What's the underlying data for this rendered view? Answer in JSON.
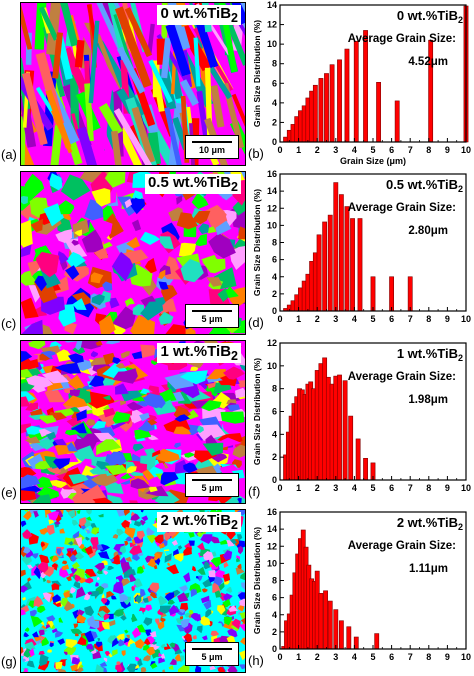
{
  "colors": {
    "bar": "#ff0000",
    "bar_edge": "#800000",
    "axis": "#000000"
  },
  "panels": [
    {
      "label": "(a)",
      "composition": "0 wt.%TiB",
      "subscript": "2",
      "scale": "10 μm"
    },
    {
      "label": "(c)",
      "composition": "0.5 wt.%TiB",
      "subscript": "2",
      "scale": "5 μm"
    },
    {
      "label": "(e)",
      "composition": "1 wt.%TiB",
      "subscript": "2",
      "scale": "5 μm"
    },
    {
      "label": "(g)",
      "composition": "2 wt.%TiB",
      "subscript": "2",
      "scale": "5 μm"
    }
  ],
  "chart_data": [
    {
      "type": "bar",
      "panel_label": "(b)",
      "title": "0 wt.%TiB",
      "title_sub": "2",
      "annotation_title": "Average Grain Size:",
      "annotation_value": "4.52μm",
      "xlabel": "Grain Size (μm)",
      "ylabel": "Grain Size Distribution (%)",
      "xlim": [
        0,
        10
      ],
      "ylim": [
        0,
        14
      ],
      "xticks": [
        0,
        1,
        2,
        3,
        4,
        5,
        6,
        7,
        8,
        9,
        10
      ],
      "yticks": [
        0,
        2,
        4,
        6,
        8,
        10,
        12,
        14
      ],
      "series": [
        {
          "x": [
            0.3,
            0.5,
            0.7,
            0.9,
            1.1,
            1.3,
            1.5,
            1.7,
            1.9,
            2.2,
            2.5,
            2.8,
            3.2,
            3.6,
            4.1,
            4.6,
            5.3,
            6.3,
            8.1,
            10.0
          ],
          "values": [
            0.5,
            1.2,
            1.8,
            2.6,
            3.2,
            3.7,
            4.5,
            5.2,
            5.8,
            6.5,
            7.0,
            7.9,
            8.4,
            9.5,
            10.3,
            11.4,
            6.1,
            4.2,
            10.4,
            13.9
          ]
        }
      ]
    },
    {
      "type": "bar",
      "panel_label": "(d)",
      "title": "0.5 wt.%TiB",
      "title_sub": "2",
      "annotation_title": "Average Grain Size:",
      "annotation_value": "2.80μm",
      "xlabel": "",
      "ylabel": "Grain Size Distribution (%)",
      "xlim": [
        0,
        10
      ],
      "ylim": [
        0,
        16
      ],
      "xticks": [
        0,
        1,
        2,
        3,
        4,
        5,
        6,
        7,
        8,
        9,
        10
      ],
      "yticks": [
        0,
        2,
        4,
        6,
        8,
        10,
        12,
        14,
        16
      ],
      "series": [
        {
          "x": [
            0.3,
            0.5,
            0.7,
            0.9,
            1.1,
            1.3,
            1.5,
            1.7,
            1.9,
            2.1,
            2.4,
            2.7,
            3.0,
            3.3,
            3.6,
            3.9,
            4.3,
            5.0,
            6.0,
            7.0
          ],
          "values": [
            0.3,
            0.7,
            1.2,
            1.9,
            2.7,
            3.5,
            4.3,
            5.8,
            6.8,
            8.9,
            10.4,
            11.2,
            15.0,
            13.6,
            12.2,
            10.8,
            10.8,
            4.0,
            4.0,
            4.0
          ]
        }
      ]
    },
    {
      "type": "bar",
      "panel_label": "(f)",
      "title": "1 wt.%TiB",
      "title_sub": "2",
      "annotation_title": "Average Grain Size:",
      "annotation_value": "1.98μm",
      "xlabel": "",
      "ylabel": "Grain Size Distribution (%)",
      "xlim": [
        0,
        10
      ],
      "ylim": [
        0,
        12
      ],
      "xticks": [
        0,
        1,
        2,
        3,
        4,
        5,
        6,
        7,
        8,
        9,
        10
      ],
      "yticks": [
        0,
        2,
        4,
        6,
        8,
        10,
        12
      ],
      "series": [
        {
          "x": [
            0.3,
            0.45,
            0.6,
            0.75,
            0.9,
            1.05,
            1.2,
            1.35,
            1.5,
            1.65,
            1.8,
            2.0,
            2.2,
            2.4,
            2.6,
            2.8,
            3.0,
            3.2,
            3.5,
            3.8,
            4.2,
            4.6,
            5.0
          ],
          "values": [
            2.2,
            4.2,
            5.6,
            6.7,
            7.3,
            8.0,
            7.9,
            7.5,
            8.4,
            8.6,
            8.0,
            9.6,
            10.2,
            10.7,
            9.0,
            8.4,
            9.1,
            9.2,
            8.7,
            5.6,
            3.6,
            1.9,
            1.5
          ]
        }
      ]
    },
    {
      "type": "bar",
      "panel_label": "(h)",
      "title": "2 wt.%TiB",
      "title_sub": "2",
      "annotation_title": "Average Grain Size:",
      "annotation_value": "1.11μm",
      "xlabel": "",
      "ylabel": "Grain Size Distribution (%)",
      "xlim": [
        0,
        10
      ],
      "ylim": [
        0,
        16
      ],
      "xticks": [
        0,
        1,
        2,
        3,
        4,
        5,
        6,
        7,
        8,
        9,
        10
      ],
      "yticks": [
        0,
        2,
        4,
        6,
        8,
        10,
        12,
        14,
        16
      ],
      "series": [
        {
          "x": [
            0.2,
            0.35,
            0.5,
            0.65,
            0.8,
            0.95,
            1.1,
            1.25,
            1.4,
            1.55,
            1.7,
            1.85,
            2.0,
            2.2,
            2.45,
            2.7,
            3.0,
            3.3,
            3.7,
            4.1,
            5.2
          ],
          "values": [
            0.3,
            3.3,
            4.1,
            6.3,
            8.9,
            11.1,
            12.9,
            13.9,
            11.9,
            9.8,
            8.2,
            7.9,
            9.1,
            6.5,
            6.8,
            5.6,
            4.6,
            3.3,
            2.6,
            1.4,
            1.8
          ]
        }
      ]
    }
  ]
}
